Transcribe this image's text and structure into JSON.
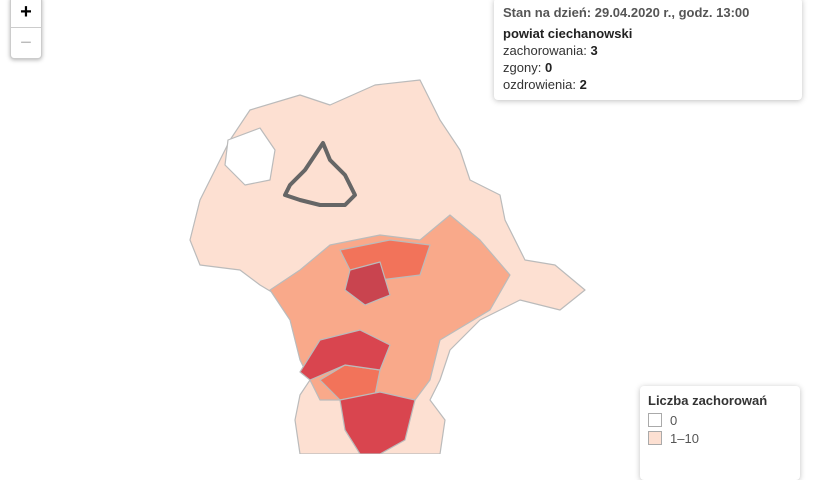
{
  "zoom": {
    "in": "+",
    "out": "−"
  },
  "info": {
    "date": "Stan na dzień: 29.04.2020 r., godz. 13:00",
    "region": "powiat ciechanowski",
    "stats": [
      {
        "label": "zachorowania:",
        "value": 3
      },
      {
        "label": "zgony:",
        "value": 0
      },
      {
        "label": "ozdrowienia:",
        "value": 2
      }
    ]
  },
  "legend": {
    "title": "Liczba zachorowań",
    "items": [
      {
        "label": "0",
        "color": "#ffffff"
      },
      {
        "label": "1–10",
        "color": "#fde0d2"
      }
    ]
  }
}
